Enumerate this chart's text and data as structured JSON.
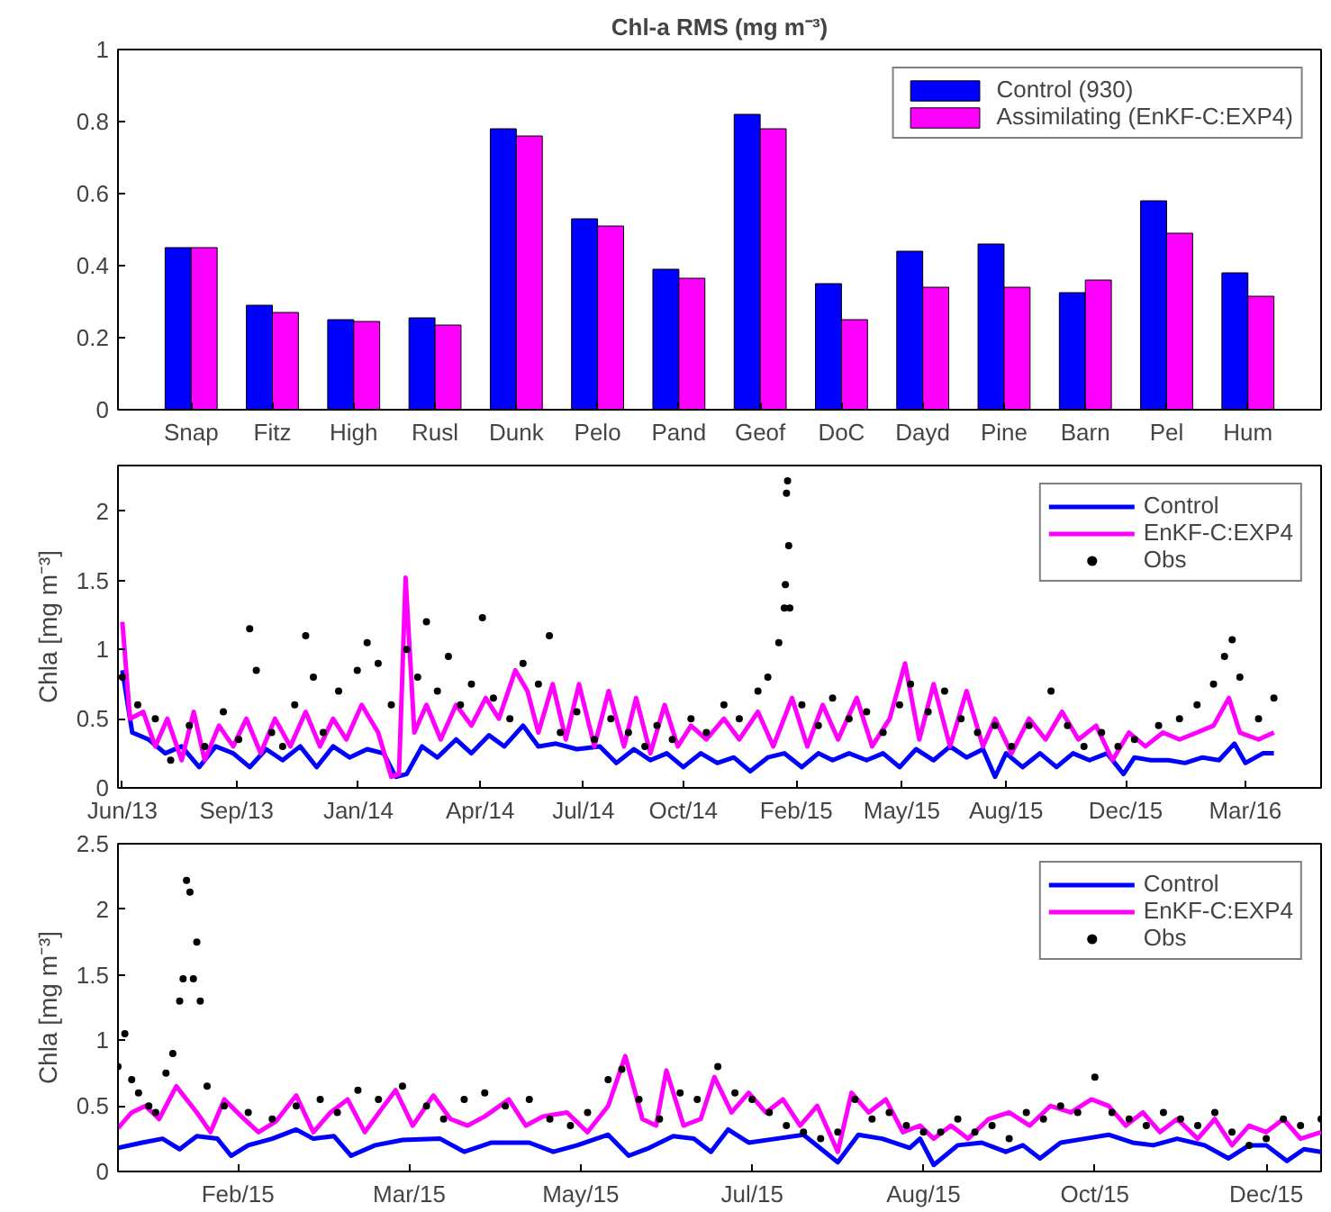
{
  "chart_data": [
    {
      "type": "bar",
      "title": "Chl-a RMS (mg m⁻³)",
      "categories": [
        "Snap",
        "Fitz",
        "High",
        "Rusl",
        "Dunk",
        "Pelo",
        "Pand",
        "Geof",
        "DoC",
        "Dayd",
        "Pine",
        "Barn",
        "Pel",
        "Hum"
      ],
      "series": [
        {
          "name": "Control (930)",
          "color": "#0000ff",
          "values": [
            0.45,
            0.29,
            0.25,
            0.255,
            0.78,
            0.53,
            0.39,
            0.82,
            0.35,
            0.44,
            0.46,
            0.325,
            0.58,
            0.38
          ]
        },
        {
          "name": "Assimilating (EnKF-C:EXP4)",
          "color": "#ff00ff",
          "values": [
            0.45,
            0.27,
            0.245,
            0.235,
            0.76,
            0.51,
            0.365,
            0.78,
            0.25,
            0.34,
            0.34,
            0.36,
            0.49,
            0.315
          ]
        }
      ],
      "ylim": [
        0,
        1
      ],
      "yticks": [
        0,
        0.2,
        0.4,
        0.6,
        0.8,
        1
      ],
      "legend": "top right",
      "grid": false
    },
    {
      "type": "line",
      "ylabel": "Chla [mg m⁻³]",
      "xlim": [
        "2013-05-28",
        "2016-05-28"
      ],
      "ylim": [
        0,
        2.33
      ],
      "yticks": [
        0,
        0.5,
        1,
        1.5,
        2
      ],
      "xticks": [
        {
          "value": "2013-06-01",
          "label": "Jun/13"
        },
        {
          "value": "2013-09-13",
          "label": "Sep/13"
        },
        {
          "value": "2014-01-02",
          "label": "Jan/14"
        },
        {
          "value": "2014-04-23",
          "label": "Apr/14"
        },
        {
          "value": "2014-07-26",
          "label": "Jul/14"
        },
        {
          "value": "2014-10-25",
          "label": "Oct/14"
        },
        {
          "value": "2015-02-05",
          "label": "Feb/15"
        },
        {
          "value": "2015-05-12",
          "label": "May/15"
        },
        {
          "value": "2015-08-15",
          "label": "Aug/15"
        },
        {
          "value": "2015-12-02",
          "label": "Dec/15"
        },
        {
          "value": "2016-03-20",
          "label": "Mar/16"
        }
      ],
      "legend": "top right",
      "grid": false,
      "series": [
        {
          "name": "Control",
          "color": "#0000ff",
          "type": "line",
          "x": [
            "2013-06-01",
            "2013-06-10",
            "2013-06-25",
            "2013-07-10",
            "2013-07-25",
            "2013-08-10",
            "2013-08-25",
            "2013-09-10",
            "2013-09-25",
            "2013-10-10",
            "2013-10-25",
            "2013-11-10",
            "2013-11-25",
            "2013-12-10",
            "2013-12-25",
            "2014-01-10",
            "2014-01-25",
            "2014-02-05",
            "2014-02-15",
            "2014-03-01",
            "2014-03-15",
            "2014-04-01",
            "2014-04-15",
            "2014-05-01",
            "2014-05-15",
            "2014-06-01",
            "2014-06-15",
            "2014-07-01",
            "2014-07-20",
            "2014-08-10",
            "2014-08-25",
            "2014-09-10",
            "2014-09-25",
            "2014-10-10",
            "2014-10-25",
            "2014-11-10",
            "2014-11-25",
            "2014-12-10",
            "2014-12-25",
            "2015-01-10",
            "2015-01-25",
            "2015-02-10",
            "2015-02-25",
            "2015-03-10",
            "2015-03-25",
            "2015-04-10",
            "2015-04-25",
            "2015-05-10",
            "2015-05-25",
            "2015-06-10",
            "2015-06-25",
            "2015-07-10",
            "2015-07-25",
            "2015-08-05",
            "2015-08-15",
            "2015-08-30",
            "2015-09-15",
            "2015-09-30",
            "2015-10-15",
            "2015-10-30",
            "2015-11-15",
            "2015-11-30",
            "2015-12-10",
            "2015-12-25",
            "2016-01-10",
            "2016-01-25",
            "2016-02-10",
            "2016-02-25",
            "2016-03-10",
            "2016-03-20",
            "2016-04-05",
            "2016-04-15"
          ],
          "values": [
            0.85,
            0.4,
            0.35,
            0.25,
            0.3,
            0.15,
            0.3,
            0.25,
            0.15,
            0.28,
            0.2,
            0.3,
            0.15,
            0.3,
            0.22,
            0.28,
            0.25,
            0.08,
            0.1,
            0.3,
            0.22,
            0.35,
            0.25,
            0.38,
            0.3,
            0.45,
            0.3,
            0.32,
            0.28,
            0.3,
            0.18,
            0.28,
            0.2,
            0.25,
            0.15,
            0.25,
            0.18,
            0.22,
            0.12,
            0.22,
            0.25,
            0.15,
            0.25,
            0.2,
            0.25,
            0.2,
            0.25,
            0.15,
            0.28,
            0.2,
            0.3,
            0.22,
            0.28,
            0.08,
            0.25,
            0.15,
            0.25,
            0.15,
            0.25,
            0.2,
            0.25,
            0.1,
            0.22,
            0.2,
            0.2,
            0.18,
            0.22,
            0.2,
            0.32,
            0.18,
            0.25,
            0.25
          ]
        },
        {
          "name": "EnKF-C:EXP4",
          "color": "#ff00ff",
          "type": "line",
          "x": [
            "2013-06-01",
            "2013-06-08",
            "2013-06-20",
            "2013-07-01",
            "2013-07-12",
            "2013-07-25",
            "2013-08-05",
            "2013-08-15",
            "2013-08-28",
            "2013-09-10",
            "2013-09-22",
            "2013-10-05",
            "2013-10-18",
            "2013-11-01",
            "2013-11-15",
            "2013-11-28",
            "2013-12-10",
            "2013-12-22",
            "2014-01-05",
            "2014-01-20",
            "2014-02-01",
            "2014-02-08",
            "2014-02-14",
            "2014-02-22",
            "2014-03-05",
            "2014-03-18",
            "2014-04-01",
            "2014-04-15",
            "2014-04-28",
            "2014-05-10",
            "2014-05-25",
            "2014-06-05",
            "2014-06-15",
            "2014-06-28",
            "2014-07-10",
            "2014-07-22",
            "2014-08-05",
            "2014-08-18",
            "2014-09-01",
            "2014-09-12",
            "2014-09-25",
            "2014-10-08",
            "2014-10-20",
            "2014-11-01",
            "2014-11-15",
            "2014-12-01",
            "2014-12-15",
            "2015-01-01",
            "2015-01-15",
            "2015-02-01",
            "2015-02-15",
            "2015-03-01",
            "2015-03-15",
            "2015-04-01",
            "2015-04-15",
            "2015-05-01",
            "2015-05-15",
            "2015-05-28",
            "2015-06-10",
            "2015-06-25",
            "2015-07-10",
            "2015-07-25",
            "2015-08-05",
            "2015-08-20",
            "2015-09-05",
            "2015-09-20",
            "2015-10-05",
            "2015-10-20",
            "2015-11-05",
            "2015-11-20",
            "2015-12-05",
            "2015-12-20",
            "2016-01-05",
            "2016-01-20",
            "2016-02-05",
            "2016-02-20",
            "2016-03-05",
            "2016-03-15",
            "2016-04-01",
            "2016-04-15"
          ],
          "values": [
            1.2,
            0.5,
            0.55,
            0.3,
            0.5,
            0.2,
            0.55,
            0.2,
            0.45,
            0.3,
            0.5,
            0.25,
            0.5,
            0.3,
            0.55,
            0.3,
            0.5,
            0.35,
            0.6,
            0.4,
            0.08,
            0.1,
            1.52,
            0.4,
            0.6,
            0.35,
            0.6,
            0.45,
            0.65,
            0.5,
            0.85,
            0.7,
            0.4,
            0.75,
            0.35,
            0.75,
            0.3,
            0.7,
            0.3,
            0.65,
            0.25,
            0.6,
            0.3,
            0.45,
            0.35,
            0.5,
            0.35,
            0.55,
            0.3,
            0.65,
            0.3,
            0.6,
            0.35,
            0.65,
            0.3,
            0.5,
            0.9,
            0.35,
            0.75,
            0.3,
            0.7,
            0.3,
            0.5,
            0.25,
            0.5,
            0.35,
            0.55,
            0.35,
            0.45,
            0.2,
            0.4,
            0.3,
            0.4,
            0.35,
            0.4,
            0.45,
            0.65,
            0.4,
            0.35,
            0.4
          ]
        },
        {
          "name": "Obs",
          "color": "#000000",
          "type": "scatter",
          "marker": "circle",
          "x": [
            "2013-06-01",
            "2013-06-15",
            "2013-07-01",
            "2013-07-15",
            "2013-08-01",
            "2013-08-15",
            "2013-09-01",
            "2013-09-15",
            "2013-09-25",
            "2013-10-01",
            "2013-10-15",
            "2013-10-25",
            "2013-11-05",
            "2013-11-15",
            "2013-11-22",
            "2013-12-01",
            "2013-12-15",
            "2014-01-01",
            "2014-01-10",
            "2014-01-20",
            "2014-02-01",
            "2014-02-15",
            "2014-02-25",
            "2014-03-05",
            "2014-03-15",
            "2014-03-25",
            "2014-04-05",
            "2014-04-15",
            "2014-04-25",
            "2014-05-05",
            "2014-05-20",
            "2014-06-01",
            "2014-06-15",
            "2014-06-25",
            "2014-07-05",
            "2014-07-20",
            "2014-08-05",
            "2014-08-20",
            "2014-09-05",
            "2014-09-20",
            "2014-10-01",
            "2014-10-15",
            "2014-11-01",
            "2014-11-15",
            "2014-12-01",
            "2014-12-15",
            "2015-01-01",
            "2015-01-10",
            "2015-01-20",
            "2015-01-25",
            "2015-01-26",
            "2015-01-27",
            "2015-01-28",
            "2015-01-29",
            "2015-01-30",
            "2015-02-10",
            "2015-02-25",
            "2015-03-10",
            "2015-03-25",
            "2015-04-10",
            "2015-04-25",
            "2015-05-10",
            "2015-05-20",
            "2015-06-05",
            "2015-06-20",
            "2015-07-05",
            "2015-07-20",
            "2015-08-05",
            "2015-08-20",
            "2015-09-05",
            "2015-09-25",
            "2015-10-10",
            "2015-10-25",
            "2015-11-10",
            "2015-11-25",
            "2015-12-10",
            "2016-01-01",
            "2016-01-20",
            "2016-02-05",
            "2016-02-20",
            "2016-03-01",
            "2016-03-08",
            "2016-03-15",
            "2016-04-01",
            "2016-04-15"
          ],
          "values": [
            0.8,
            0.6,
            0.5,
            0.2,
            0.45,
            0.3,
            0.55,
            0.35,
            1.15,
            0.85,
            0.4,
            0.3,
            0.6,
            1.1,
            0.8,
            0.4,
            0.7,
            0.85,
            1.05,
            0.9,
            0.6,
            1.0,
            0.8,
            1.2,
            0.7,
            0.95,
            0.6,
            0.75,
            1.23,
            0.65,
            0.5,
            0.9,
            0.75,
            1.1,
            0.4,
            0.55,
            0.35,
            0.5,
            0.4,
            0.3,
            0.45,
            0.35,
            0.5,
            0.4,
            0.6,
            0.5,
            0.7,
            0.8,
            1.05,
            1.3,
            1.47,
            2.13,
            2.22,
            1.75,
            1.3,
            0.6,
            0.45,
            0.65,
            0.5,
            0.55,
            0.4,
            0.6,
            0.75,
            0.55,
            0.7,
            0.5,
            0.4,
            0.45,
            0.3,
            0.45,
            0.7,
            0.45,
            0.3,
            0.4,
            0.3,
            0.35,
            0.45,
            0.5,
            0.6,
            0.75,
            0.95,
            1.07,
            0.8,
            0.5,
            0.65
          ]
        }
      ]
    },
    {
      "type": "line",
      "ylabel": "Chla [mg m⁻³]",
      "xlim": [
        "2015-01-01",
        "2015-12-18"
      ],
      "ylim": [
        0,
        2.5
      ],
      "yticks": [
        0,
        0.5,
        1,
        1.5,
        2,
        2.5
      ],
      "xticks": [
        {
          "value": "2015-02-05",
          "label": "Feb/15"
        },
        {
          "value": "2015-03-27",
          "label": "Mar/15"
        },
        {
          "value": "2015-05-16",
          "label": "May/15"
        },
        {
          "value": "2015-07-05",
          "label": "Jul/15"
        },
        {
          "value": "2015-08-24",
          "label": "Aug/15"
        },
        {
          "value": "2015-10-13",
          "label": "Oct/15"
        },
        {
          "value": "2015-12-02",
          "label": "Dec/15"
        }
      ],
      "legend": "top right",
      "grid": false,
      "series": [
        {
          "name": "Control",
          "color": "#0000ff",
          "type": "line",
          "x": [
            "2015-01-01",
            "2015-01-08",
            "2015-01-14",
            "2015-01-19",
            "2015-01-24",
            "2015-01-30",
            "2015-02-03",
            "2015-02-08",
            "2015-02-15",
            "2015-02-22",
            "2015-02-27",
            "2015-03-05",
            "2015-03-10",
            "2015-03-17",
            "2015-03-25",
            "2015-04-05",
            "2015-04-12",
            "2015-04-20",
            "2015-05-01",
            "2015-05-08",
            "2015-05-15",
            "2015-05-24",
            "2015-05-30",
            "2015-06-05",
            "2015-06-12",
            "2015-06-18",
            "2015-06-23",
            "2015-06-28",
            "2015-07-04",
            "2015-07-12",
            "2015-07-20",
            "2015-07-30",
            "2015-08-05",
            "2015-08-12",
            "2015-08-20",
            "2015-08-23",
            "2015-08-27",
            "2015-09-03",
            "2015-09-10",
            "2015-09-17",
            "2015-09-22",
            "2015-09-27",
            "2015-10-03",
            "2015-10-10",
            "2015-10-17",
            "2015-10-24",
            "2015-10-30",
            "2015-11-06",
            "2015-11-14",
            "2015-11-21",
            "2015-11-27",
            "2015-12-02",
            "2015-12-08",
            "2015-12-13",
            "2015-12-18"
          ],
          "values": [
            0.18,
            0.22,
            0.25,
            0.17,
            0.27,
            0.25,
            0.12,
            0.2,
            0.25,
            0.32,
            0.25,
            0.27,
            0.12,
            0.2,
            0.24,
            0.25,
            0.15,
            0.22,
            0.22,
            0.15,
            0.2,
            0.28,
            0.12,
            0.18,
            0.27,
            0.25,
            0.15,
            0.32,
            0.22,
            0.25,
            0.28,
            0.07,
            0.28,
            0.25,
            0.18,
            0.25,
            0.05,
            0.2,
            0.22,
            0.15,
            0.2,
            0.1,
            0.22,
            0.25,
            0.28,
            0.22,
            0.2,
            0.25,
            0.2,
            0.1,
            0.2,
            0.2,
            0.08,
            0.17,
            0.15
          ]
        },
        {
          "name": "EnKF-C:EXP4",
          "color": "#ff00ff",
          "type": "line",
          "x": [
            "2015-01-01",
            "2015-01-05",
            "2015-01-09",
            "2015-01-13",
            "2015-01-18",
            "2015-01-24",
            "2015-01-28",
            "2015-02-01",
            "2015-02-06",
            "2015-02-11",
            "2015-02-16",
            "2015-02-22",
            "2015-02-27",
            "2015-03-04",
            "2015-03-09",
            "2015-03-14",
            "2015-03-19",
            "2015-03-23",
            "2015-03-28",
            "2015-04-03",
            "2015-04-08",
            "2015-04-13",
            "2015-04-18",
            "2015-04-25",
            "2015-04-30",
            "2015-05-05",
            "2015-05-12",
            "2015-05-18",
            "2015-05-24",
            "2015-05-29",
            "2015-06-03",
            "2015-06-07",
            "2015-06-10",
            "2015-06-15",
            "2015-06-20",
            "2015-06-24",
            "2015-06-29",
            "2015-07-04",
            "2015-07-09",
            "2015-07-14",
            "2015-07-19",
            "2015-07-24",
            "2015-07-30",
            "2015-08-03",
            "2015-08-08",
            "2015-08-13",
            "2015-08-18",
            "2015-08-23",
            "2015-08-27",
            "2015-09-01",
            "2015-09-06",
            "2015-09-12",
            "2015-09-18",
            "2015-09-24",
            "2015-09-30",
            "2015-10-06",
            "2015-10-12",
            "2015-10-17",
            "2015-10-22",
            "2015-10-27",
            "2015-11-01",
            "2015-11-06",
            "2015-11-12",
            "2015-11-17",
            "2015-11-22",
            "2015-11-27",
            "2015-12-02",
            "2015-12-07",
            "2015-12-12",
            "2015-12-18"
          ],
          "values": [
            0.33,
            0.45,
            0.5,
            0.4,
            0.65,
            0.45,
            0.3,
            0.55,
            0.42,
            0.3,
            0.38,
            0.58,
            0.3,
            0.45,
            0.55,
            0.3,
            0.48,
            0.62,
            0.35,
            0.58,
            0.4,
            0.35,
            0.42,
            0.55,
            0.35,
            0.42,
            0.45,
            0.3,
            0.5,
            0.88,
            0.4,
            0.35,
            0.77,
            0.35,
            0.4,
            0.72,
            0.45,
            0.6,
            0.45,
            0.55,
            0.35,
            0.5,
            0.15,
            0.6,
            0.45,
            0.55,
            0.3,
            0.35,
            0.25,
            0.35,
            0.25,
            0.4,
            0.45,
            0.35,
            0.5,
            0.45,
            0.55,
            0.5,
            0.35,
            0.45,
            0.3,
            0.4,
            0.25,
            0.4,
            0.2,
            0.35,
            0.3,
            0.4,
            0.25,
            0.3
          ]
        },
        {
          "name": "Obs",
          "color": "#000000",
          "type": "scatter",
          "marker": "circle",
          "x": [
            "2015-01-01",
            "2015-01-03",
            "2015-01-05",
            "2015-01-07",
            "2015-01-10",
            "2015-01-12",
            "2015-01-15",
            "2015-01-17",
            "2015-01-19",
            "2015-01-20",
            "2015-01-21",
            "2015-01-22",
            "2015-01-23",
            "2015-01-24",
            "2015-01-25",
            "2015-01-27",
            "2015-02-01",
            "2015-02-08",
            "2015-02-15",
            "2015-02-22",
            "2015-03-01",
            "2015-03-06",
            "2015-03-12",
            "2015-03-18",
            "2015-03-25",
            "2015-04-01",
            "2015-04-06",
            "2015-04-12",
            "2015-04-18",
            "2015-04-24",
            "2015-05-01",
            "2015-05-07",
            "2015-05-13",
            "2015-05-18",
            "2015-05-24",
            "2015-05-28",
            "2015-06-02",
            "2015-06-08",
            "2015-06-14",
            "2015-06-19",
            "2015-06-25",
            "2015-06-30",
            "2015-07-05",
            "2015-07-10",
            "2015-07-15",
            "2015-07-20",
            "2015-07-25",
            "2015-07-30",
            "2015-08-04",
            "2015-08-09",
            "2015-08-14",
            "2015-08-19",
            "2015-08-24",
            "2015-08-29",
            "2015-09-03",
            "2015-09-08",
            "2015-09-13",
            "2015-09-18",
            "2015-09-23",
            "2015-09-28",
            "2015-10-03",
            "2015-10-08",
            "2015-10-13",
            "2015-10-18",
            "2015-10-23",
            "2015-10-28",
            "2015-11-02",
            "2015-11-07",
            "2015-11-12",
            "2015-11-17",
            "2015-11-22",
            "2015-11-27",
            "2015-12-02",
            "2015-12-07",
            "2015-12-12",
            "2015-12-18"
          ],
          "values": [
            0.8,
            1.05,
            0.7,
            0.6,
            0.5,
            0.45,
            0.75,
            0.9,
            1.3,
            1.47,
            2.22,
            2.13,
            1.47,
            1.75,
            1.3,
            0.65,
            0.5,
            0.45,
            0.4,
            0.5,
            0.55,
            0.45,
            0.62,
            0.55,
            0.65,
            0.5,
            0.4,
            0.55,
            0.6,
            0.5,
            0.55,
            0.4,
            0.35,
            0.45,
            0.7,
            0.78,
            0.55,
            0.4,
            0.6,
            0.55,
            0.8,
            0.6,
            0.55,
            0.45,
            0.35,
            0.3,
            0.25,
            0.3,
            0.55,
            0.4,
            0.45,
            0.35,
            0.3,
            0.3,
            0.4,
            0.3,
            0.35,
            0.25,
            0.45,
            0.4,
            0.5,
            0.45,
            0.72,
            0.45,
            0.4,
            0.35,
            0.45,
            0.4,
            0.35,
            0.45,
            0.3,
            0.2,
            0.25,
            0.4,
            0.35,
            0.4
          ]
        }
      ]
    }
  ]
}
